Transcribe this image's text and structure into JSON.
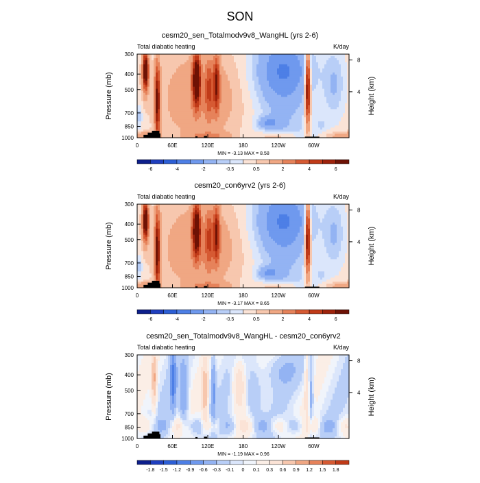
{
  "figure_title": "SON",
  "chart_data": [
    {
      "type": "heatmap",
      "title": "cesm20_sen_Totalmodv9v8_WangHL (yrs 2-6)",
      "left_label": "Total diabatic heating",
      "right_label": "K/day",
      "ylabel": "Pressure (mb)",
      "ylabel_right": "Height (km)",
      "y_ticks": [
        "300",
        "400",
        "500",
        "700",
        "850",
        "1000"
      ],
      "y_ticks_right": [
        "8",
        "4"
      ],
      "x_ticks": [
        "0",
        "60E",
        "120E",
        "180",
        "120W",
        "60W"
      ],
      "stats": "MIN =  -3.13  MAX =   8.58",
      "colorbar_labels": [
        "-6",
        "-4",
        "-2",
        "-0.5",
        "0.5",
        "2",
        "4",
        "6"
      ],
      "colorbar_colors": [
        "#0d1f8c",
        "#1f3fbf",
        "#2c5fd6",
        "#4d7fe6",
        "#6f99ee",
        "#93b3f3",
        "#b8cef7",
        "#dbe6fb",
        "#fbe3d6",
        "#f7c7ae",
        "#f0a783",
        "#e6825a",
        "#d65a33",
        "#c03a18",
        "#9e220b",
        "#6e1205"
      ],
      "field": "sen"
    },
    {
      "type": "heatmap",
      "title": "cesm20_con6yrv2 (yrs 2-6)",
      "left_label": "Total diabatic heating",
      "right_label": "K/day",
      "ylabel": "Pressure (mb)",
      "ylabel_right": "Height (km)",
      "y_ticks": [
        "300",
        "400",
        "500",
        "700",
        "850",
        "1000"
      ],
      "y_ticks_right": [
        "8",
        "4"
      ],
      "x_ticks": [
        "0",
        "60E",
        "120E",
        "180",
        "120W",
        "60W"
      ],
      "stats": "MIN =  -3.17  MAX =   8.65",
      "colorbar_labels": [
        "-6",
        "-4",
        "-2",
        "-0.5",
        "0.5",
        "2",
        "4",
        "6"
      ],
      "colorbar_colors": [
        "#0d1f8c",
        "#1f3fbf",
        "#2c5fd6",
        "#4d7fe6",
        "#6f99ee",
        "#93b3f3",
        "#b8cef7",
        "#dbe6fb",
        "#fbe3d6",
        "#f7c7ae",
        "#f0a783",
        "#e6825a",
        "#d65a33",
        "#c03a18",
        "#9e220b",
        "#6e1205"
      ],
      "field": "con"
    },
    {
      "type": "heatmap",
      "title": "cesm20_sen_Totalmodv9v8_WangHL - cesm20_con6yrv2",
      "left_label": "Total diabatic heating",
      "right_label": "K/day",
      "ylabel": "Pressure (mb)",
      "ylabel_right": "Height (km)",
      "y_ticks": [
        "300",
        "400",
        "500",
        "700",
        "850",
        "1000"
      ],
      "y_ticks_right": [
        "8",
        "4"
      ],
      "x_ticks": [
        "0",
        "60E",
        "120E",
        "180",
        "120W",
        "60W"
      ],
      "stats": "MIN =  -1.19  MAX =   0.96",
      "colorbar_labels": [
        "-1.8",
        "-1.5",
        "-1.2",
        "-0.9",
        "-0.6",
        "-0.3",
        "-0.1",
        "0",
        "0.1",
        "0.3",
        "0.6",
        "0.9",
        "1.2",
        "1.5",
        "1.8"
      ],
      "colorbar_colors": [
        "#0d1f8c",
        "#1f3fbf",
        "#2c5fd6",
        "#4d7fe6",
        "#6f99ee",
        "#93b3f3",
        "#b8cef7",
        "#dbe6fb",
        "#f0f4fb",
        "#fbeee6",
        "#fbe3d6",
        "#f7c7ae",
        "#f0a783",
        "#e6825a",
        "#d65a33",
        "#c03a18"
      ],
      "field": "diff"
    }
  ]
}
